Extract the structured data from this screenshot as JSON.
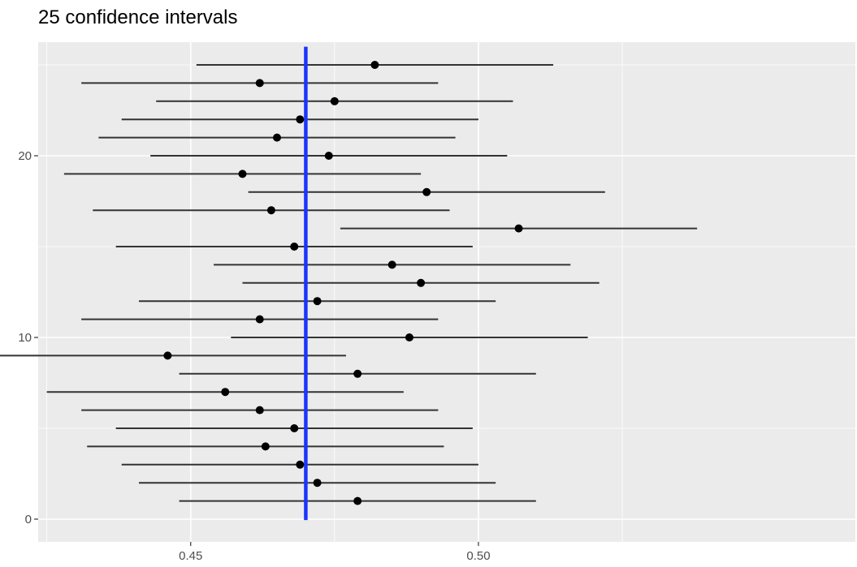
{
  "chart_data": {
    "type": "scatter",
    "title": "25 confidence intervals",
    "xlabel": "",
    "ylabel": "",
    "xlim": [
      0.4235,
      0.5655
    ],
    "ylim": [
      -1.25,
      26.25
    ],
    "x_ticks": [
      0.45,
      0.5
    ],
    "x_tick_labels": [
      "0.45",
      "0.50"
    ],
    "y_ticks": [
      0,
      10,
      20
    ],
    "y_tick_labels": [
      "0",
      "10",
      "20"
    ],
    "grid": true,
    "legend": "none",
    "reference_line": {
      "x": 0.47,
      "color": "#1a35ff"
    },
    "colors": {
      "panel": "#ebebeb",
      "grid": "#ffffff",
      "interval": "#333333",
      "point": "#000000",
      "reference": "#1a35ff"
    },
    "intervals": [
      {
        "y": 1,
        "estimate": 0.479,
        "lower": 0.448,
        "upper": 0.51
      },
      {
        "y": 2,
        "estimate": 0.472,
        "lower": 0.441,
        "upper": 0.503
      },
      {
        "y": 3,
        "estimate": 0.469,
        "lower": 0.438,
        "upper": 0.5
      },
      {
        "y": 4,
        "estimate": 0.463,
        "lower": 0.432,
        "upper": 0.494
      },
      {
        "y": 5,
        "estimate": 0.468,
        "lower": 0.437,
        "upper": 0.499
      },
      {
        "y": 6,
        "estimate": 0.462,
        "lower": 0.431,
        "upper": 0.493
      },
      {
        "y": 7,
        "estimate": 0.456,
        "lower": 0.425,
        "upper": 0.487
      },
      {
        "y": 8,
        "estimate": 0.479,
        "lower": 0.448,
        "upper": 0.51
      },
      {
        "y": 9,
        "estimate": 0.446,
        "lower": 0.415,
        "upper": 0.477
      },
      {
        "y": 10,
        "estimate": 0.488,
        "lower": 0.457,
        "upper": 0.519
      },
      {
        "y": 11,
        "estimate": 0.462,
        "lower": 0.431,
        "upper": 0.493
      },
      {
        "y": 12,
        "estimate": 0.472,
        "lower": 0.441,
        "upper": 0.503
      },
      {
        "y": 13,
        "estimate": 0.49,
        "lower": 0.459,
        "upper": 0.521
      },
      {
        "y": 14,
        "estimate": 0.485,
        "lower": 0.454,
        "upper": 0.516
      },
      {
        "y": 15,
        "estimate": 0.468,
        "lower": 0.437,
        "upper": 0.499
      },
      {
        "y": 16,
        "estimate": 0.507,
        "lower": 0.476,
        "upper": 0.538
      },
      {
        "y": 17,
        "estimate": 0.464,
        "lower": 0.433,
        "upper": 0.495
      },
      {
        "y": 18,
        "estimate": 0.491,
        "lower": 0.46,
        "upper": 0.522
      },
      {
        "y": 19,
        "estimate": 0.459,
        "lower": 0.428,
        "upper": 0.49
      },
      {
        "y": 20,
        "estimate": 0.474,
        "lower": 0.443,
        "upper": 0.505
      },
      {
        "y": 21,
        "estimate": 0.465,
        "lower": 0.434,
        "upper": 0.496
      },
      {
        "y": 22,
        "estimate": 0.469,
        "lower": 0.438,
        "upper": 0.5
      },
      {
        "y": 23,
        "estimate": 0.475,
        "lower": 0.444,
        "upper": 0.506
      },
      {
        "y": 24,
        "estimate": 0.462,
        "lower": 0.431,
        "upper": 0.493
      },
      {
        "y": 25,
        "estimate": 0.482,
        "lower": 0.451,
        "upper": 0.513
      }
    ]
  }
}
